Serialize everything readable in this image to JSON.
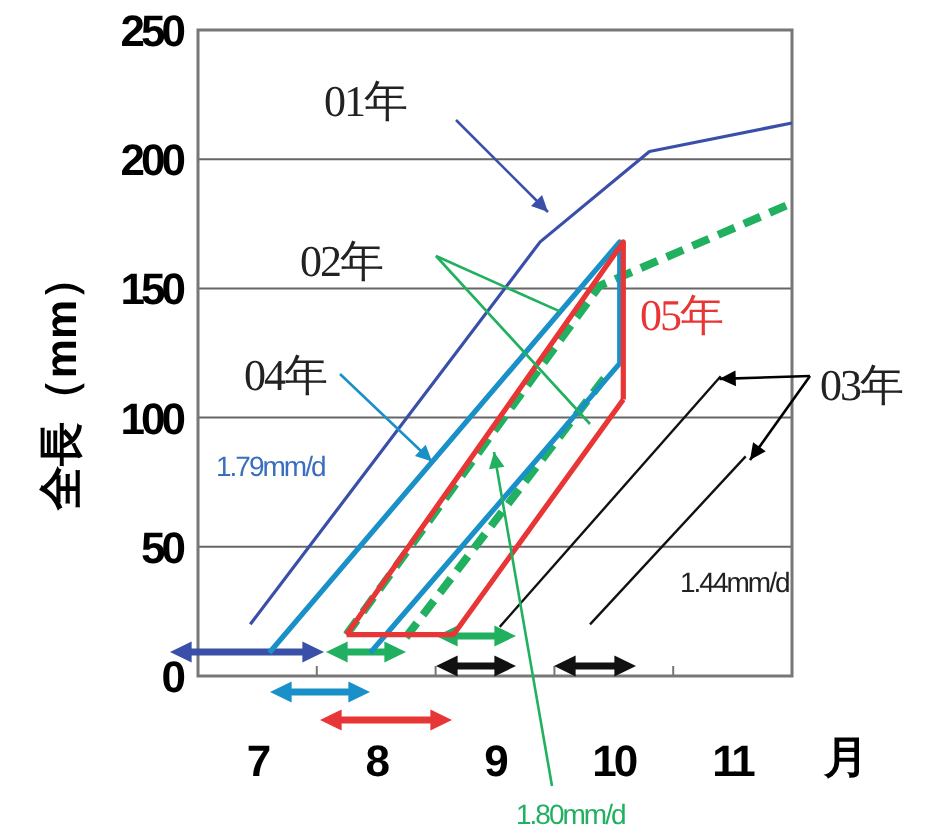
{
  "chart_data": {
    "type": "line",
    "xlabel": "月",
    "ylabel": "全長（mm）",
    "xlim": [
      7,
      12
    ],
    "xticks": [
      {
        "value": 7.5,
        "label": "7"
      },
      {
        "value": 8,
        "label": null
      },
      {
        "value": 8.5,
        "label": "8"
      },
      {
        "value": 9,
        "label": null
      },
      {
        "value": 9.5,
        "label": "9"
      },
      {
        "value": 10,
        "label": null
      },
      {
        "value": 10.5,
        "label": "10"
      },
      {
        "value": 11,
        "label": null
      },
      {
        "value": 11.5,
        "label": "11"
      }
    ],
    "ylim": [
      0,
      250
    ],
    "yticks": [
      0,
      50,
      100,
      150,
      200,
      250
    ],
    "grid": "y",
    "series": [
      {
        "color": "#3a4fa8",
        "x": [
          7.44,
          9.88,
          10.8,
          12
        ],
        "values": [
          20,
          168,
          203,
          214
        ]
      },
      {
        "color": "#20b060",
        "line_style": "dashed",
        "x": [
          8.25,
          10.38,
          12
        ],
        "values": [
          16,
          151,
          183
        ]
      },
      {
        "color": "#20b060",
        "line_style": "dashed",
        "x": [
          8.75,
          10.45
        ],
        "values": [
          15,
          117
        ]
      },
      {
        "color": "#1a90c8",
        "x": [
          7.6,
          10.55,
          10.55,
          8.45
        ],
        "values": [
          9,
          168,
          121,
          9
        ]
      },
      {
        "color": "#e83535",
        "x": [
          8.25,
          10.58,
          10.58
        ],
        "values": [
          16,
          168,
          107
        ]
      },
      {
        "color": "#e83535",
        "x": [
          8.25,
          9.15,
          10.58
        ],
        "values": [
          16,
          16,
          107
        ]
      },
      {
        "color": "#111111",
        "x": [
          9.54,
          11.4
        ],
        "values": [
          19,
          116
        ]
      },
      {
        "color": "#111111",
        "x": [
          10.3,
          11.61
        ],
        "values": [
          20,
          85
        ]
      }
    ],
    "annotations": [
      "01年",
      {
        "text": "02年",
        "x": 10.05,
        "y": 141
      },
      {
        "text": "04年",
        "x": 8.97,
        "y": 83
      },
      "05年",
      {
        "text": "03年",
        "x": 11.39,
        "y": 115
      },
      "1.79mm/d",
      "1.80mm/d",
      "1.44mm/d"
    ]
  }
}
